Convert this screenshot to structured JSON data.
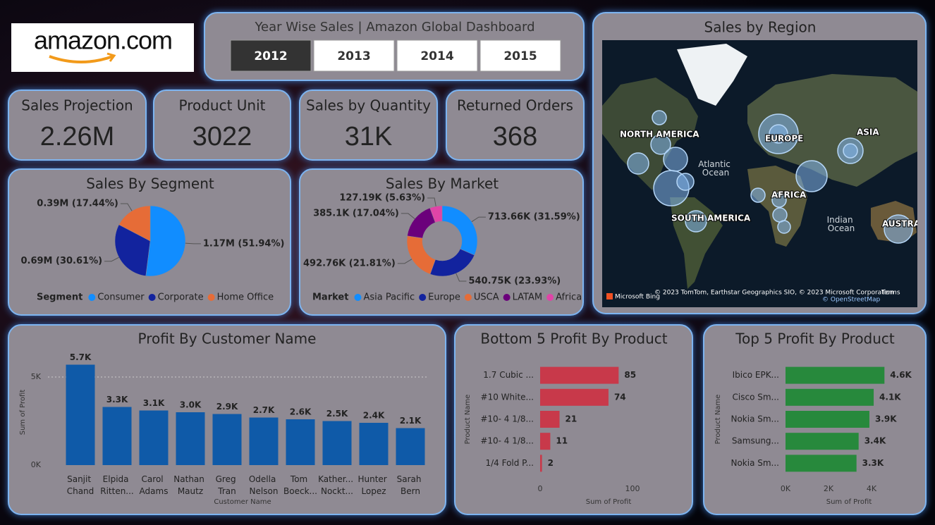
{
  "logo": {
    "text": "amazon.com"
  },
  "slicer": {
    "title": "Year Wise Sales | Amazon Global Dashboard",
    "options": [
      "2012",
      "2013",
      "2014",
      "2015"
    ],
    "selected": "2012"
  },
  "kpis": [
    {
      "label": "Sales Projection",
      "value": "2.26M"
    },
    {
      "label": "Product Unit",
      "value": "3022"
    },
    {
      "label": "Sales by Quantity",
      "value": "31K"
    },
    {
      "label": "Returned Orders",
      "value": "368"
    }
  ],
  "map": {
    "title": "Sales by Region",
    "labels": [
      "NORTH AMERICA",
      "Atlantic Ocean",
      "EUROPE",
      "ASIA",
      "AFRICA",
      "SOUTH AMERICA",
      "Indian Ocean",
      "AUSTRALIA"
    ],
    "attribution": {
      "logo": "Microsoft Bing",
      "credits": "© 2023 TomTom, Earthstar Geographics SIO, © 2023 Microsoft Corporation",
      "terms": "Terms",
      "osm": "© OpenStreetMap"
    }
  },
  "chart_data": [
    {
      "type": "pie",
      "title": "Sales By Segment",
      "legend_title": "Segment",
      "categories": [
        "Consumer",
        "Corporate",
        "Home Office"
      ],
      "values": [
        1170000,
        690000,
        390000
      ],
      "value_labels": [
        "1.17M (51.94%)",
        "0.69M (30.61%)",
        "0.39M (17.44%)"
      ],
      "colors": [
        "#118DFF",
        "#12239E",
        "#E66C37"
      ]
    },
    {
      "type": "donut",
      "title": "Sales By Market",
      "legend_title": "Market",
      "categories": [
        "Asia Pacific",
        "Europe",
        "USCA",
        "LATAM",
        "Africa"
      ],
      "values": [
        713660,
        540750,
        492760,
        385100,
        127190
      ],
      "value_labels": [
        "713.66K (31.59%)",
        "540.75K (23.93%)",
        "492.76K (21.81%)",
        "385.1K (17.04%)",
        "127.19K (5.63%)"
      ],
      "colors": [
        "#118DFF",
        "#12239E",
        "#E66C37",
        "#6B007B",
        "#E044A7"
      ]
    },
    {
      "type": "bar",
      "title": "Profit By Customer Name",
      "x_label": "Customer Name",
      "y_label": "Sum of Profit",
      "categories": [
        "Sanjit Chand",
        "Elpida Ritten...",
        "Carol Adams",
        "Nathan Mautz",
        "Greg Tran",
        "Odella Nelson",
        "Tom Boeck...",
        "Kather... Nockt...",
        "Hunter Lopez",
        "Sarah Bern"
      ],
      "values": [
        5700,
        3300,
        3100,
        3000,
        2900,
        2700,
        2600,
        2500,
        2400,
        2100
      ],
      "value_labels": [
        "5.7K",
        "3.3K",
        "3.1K",
        "3.0K",
        "2.9K",
        "2.7K",
        "2.6K",
        "2.5K",
        "2.4K",
        "2.1K"
      ],
      "color": "#0F5AA8",
      "ylim": [
        0,
        6000
      ],
      "yticks": [
        {
          "value": 0,
          "label": "0K"
        },
        {
          "value": 5000,
          "label": "5K"
        }
      ],
      "grid": true
    },
    {
      "type": "barh",
      "title": "Bottom 5 Profit By Product",
      "x_label": "Sum of Profit",
      "y_label": "Product Name",
      "categories": [
        "1.7 Cubic ...",
        "#10 White...",
        "#10- 4 1/8...",
        "#10- 4 1/8...",
        "1/4 Fold P..."
      ],
      "values": [
        85,
        74,
        21,
        11,
        2
      ],
      "color": "#C8394A",
      "xlim": [
        0,
        100
      ],
      "xticks": [
        0,
        100
      ]
    },
    {
      "type": "barh",
      "title": "Top 5 Profit By Product",
      "x_label": "Sum of Profit",
      "y_label": "Product Name",
      "categories": [
        "Ibico EPK...",
        "Cisco Sm...",
        "Nokia Sm...",
        "Samsung...",
        "Nokia Sm..."
      ],
      "values": [
        4600,
        4100,
        3900,
        3400,
        3300
      ],
      "value_labels": [
        "4.6K",
        "4.1K",
        "3.9K",
        "3.4K",
        "3.3K"
      ],
      "color": "#27893C",
      "xlim": [
        0,
        5000
      ],
      "xticks": [
        {
          "value": 0,
          "label": "0K"
        },
        {
          "value": 2000,
          "label": "2K"
        },
        {
          "value": 4000,
          "label": "4K"
        }
      ]
    }
  ]
}
